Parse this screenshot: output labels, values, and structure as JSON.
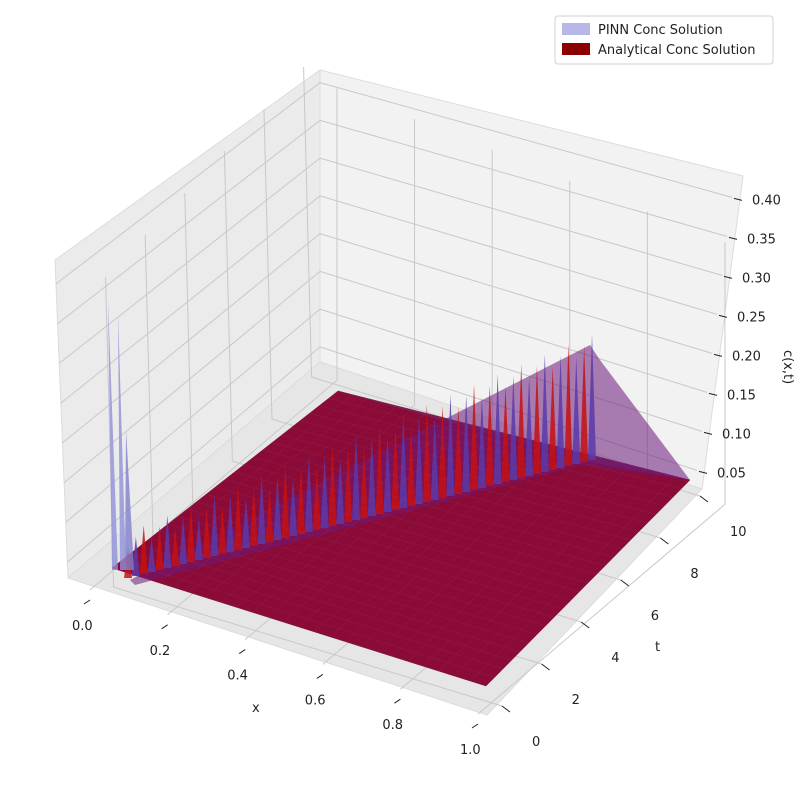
{
  "chart_data": {
    "type": "surface3d",
    "title": "",
    "xlabel": "x",
    "ylabel": "t",
    "zlabel": "c(x,t)",
    "xlim": [
      0,
      1
    ],
    "ylim": [
      0,
      10
    ],
    "zlim": [
      0.03,
      0.43
    ],
    "x_ticks": [
      "0.0",
      "0.2",
      "0.4",
      "0.6",
      "0.8",
      "1.0"
    ],
    "t_ticks": [
      "0",
      "2",
      "4",
      "6",
      "8",
      "10"
    ],
    "z_ticks": [
      "0.05",
      "0.10",
      "0.15",
      "0.20",
      "0.25",
      "0.30",
      "0.35",
      "0.40"
    ],
    "grid": true,
    "legend_position": "top-right",
    "series": [
      {
        "name": "PINN Conc Solution",
        "color": "#b8b8e8",
        "surface_color": "#8080d0",
        "description_values": {
          "x": [
            0,
            0.02,
            0.05,
            0.1,
            0.2,
            0.4,
            0.6,
            0.8,
            1.0
          ],
          "c_at_x_spike_peak": [
            0.27,
            0.25,
            0.18,
            0.12,
            0.09,
            0.07,
            0.06,
            0.05,
            0.04
          ]
        }
      },
      {
        "name": "Analytical Conc Solution",
        "color": "#8b0000",
        "surface_color": "#8b0a28",
        "description_values": {
          "t": [
            0,
            2,
            4,
            6,
            8,
            10
          ],
          "c_at_x1": [
            0.04,
            0.04,
            0.05,
            0.07,
            0.12,
            0.22
          ]
        }
      }
    ]
  }
}
